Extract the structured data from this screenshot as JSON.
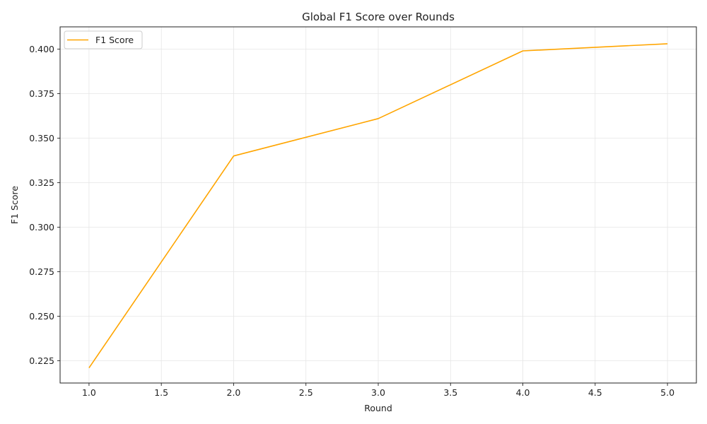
{
  "chart_data": {
    "type": "line",
    "title": "Global F1 Score over Rounds",
    "xlabel": "Round",
    "ylabel": "F1 Score",
    "xlim": [
      0.8,
      5.2
    ],
    "ylim": [
      0.2125,
      0.4125
    ],
    "x_ticks": [
      1.0,
      1.5,
      2.0,
      2.5,
      3.0,
      3.5,
      4.0,
      4.5,
      5.0
    ],
    "x_tick_labels": [
      "1.0",
      "1.5",
      "2.0",
      "2.5",
      "3.0",
      "3.5",
      "4.0",
      "4.5",
      "5.0"
    ],
    "y_ticks": [
      0.225,
      0.25,
      0.275,
      0.3,
      0.325,
      0.35,
      0.375,
      0.4
    ],
    "y_tick_labels": [
      "0.225",
      "0.250",
      "0.275",
      "0.300",
      "0.325",
      "0.350",
      "0.375",
      "0.400"
    ],
    "grid": true,
    "legend_position": "top-left",
    "series": [
      {
        "name": "F1 Score",
        "color": "#FFA500",
        "x": [
          1.0,
          2.0,
          3.0,
          4.0,
          5.0
        ],
        "y": [
          0.221,
          0.34,
          0.361,
          0.399,
          0.403
        ]
      }
    ]
  }
}
